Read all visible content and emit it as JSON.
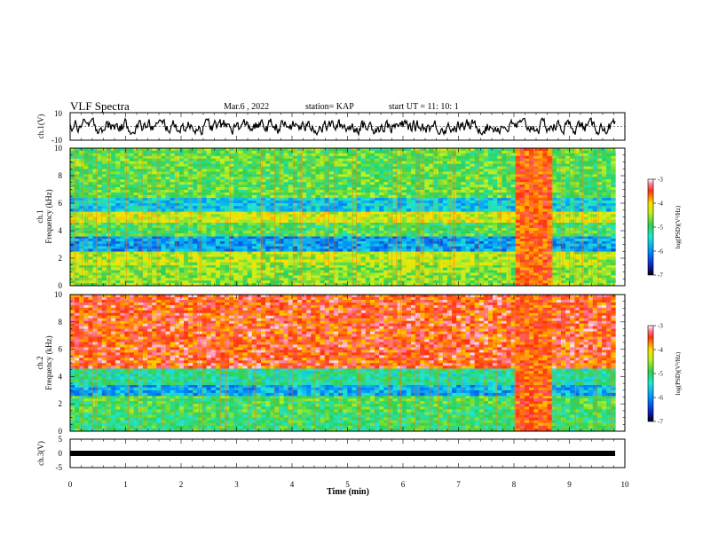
{
  "header": {
    "title": "VLF Spectra",
    "date": "Mar.6 , 2022",
    "station": "station= KAP",
    "start": "start UT =  11: 10: 1"
  },
  "chart_data": [
    {
      "type": "line",
      "panel": "ch1-waveform",
      "ylabel": "ch.1(V)",
      "ylim": [
        -10,
        10
      ],
      "yticks": [
        "10",
        "-10"
      ],
      "x_range_min": [
        0,
        9.83
      ],
      "approx_y_range": [
        -6,
        6
      ]
    },
    {
      "type": "heatmap",
      "panel": "ch1-spectrogram",
      "ylabel": "ch.1\nFrequency (kHz)",
      "ylabel_lines": [
        "ch.1",
        "Frequency (kHz)"
      ],
      "ylim": [
        0,
        10
      ],
      "yticks": [
        "0",
        "2",
        "4",
        "6",
        "8",
        "10"
      ],
      "colorbar": {
        "label": "log(PSD)(V²/Hz)",
        "range": [
          -7,
          -3
        ],
        "ticks": [
          "-3",
          "-4",
          "-5",
          "-6",
          "-7"
        ]
      },
      "bands_khz": [
        {
          "from": 0,
          "to": 1.5,
          "level": -4.6
        },
        {
          "from": 1.5,
          "to": 2.5,
          "level": -4.4
        },
        {
          "from": 2.5,
          "to": 3.6,
          "level": -5.9
        },
        {
          "from": 3.6,
          "to": 4.6,
          "level": -4.9
        },
        {
          "from": 4.6,
          "to": 5.4,
          "level": -4.3
        },
        {
          "from": 5.4,
          "to": 6.4,
          "level": -5.6
        },
        {
          "from": 6.4,
          "to": 10,
          "level": -4.8
        }
      ],
      "burst_minutes": [
        7.95,
        8.65
      ]
    },
    {
      "type": "heatmap",
      "panel": "ch2-spectrogram",
      "ylabel_lines": [
        "ch.2",
        "Frequency (kHz)"
      ],
      "ylim": [
        0,
        10
      ],
      "yticks": [
        "0",
        "2",
        "4",
        "6",
        "8",
        "10"
      ],
      "colorbar": {
        "label": "log(PSD)(V²/Hz)",
        "range": [
          -7,
          -3
        ],
        "ticks": [
          "-3",
          "-4",
          "-5",
          "-6",
          "-7"
        ]
      },
      "bands_khz": [
        {
          "from": 0,
          "to": 1.4,
          "level": -5.0
        },
        {
          "from": 1.4,
          "to": 2.6,
          "level": -4.9
        },
        {
          "from": 2.6,
          "to": 3.4,
          "level": -5.8
        },
        {
          "from": 3.4,
          "to": 4.6,
          "level": -5.2
        },
        {
          "from": 4.6,
          "to": 10,
          "level": -3.5
        }
      ],
      "burst_minutes": [
        7.95,
        8.65
      ]
    },
    {
      "type": "line",
      "panel": "ch3-waveform",
      "ylabel": "ch.3(V)",
      "ylim": [
        -5,
        5
      ],
      "yticks": [
        "5",
        "0",
        "-5"
      ],
      "x_range_min": [
        0,
        9.83
      ],
      "approx_level": 0
    }
  ],
  "xaxis": {
    "label": "Time (min)",
    "range": [
      0,
      10
    ],
    "ticks": [
      "0",
      "1",
      "2",
      "3",
      "4",
      "5",
      "6",
      "7",
      "8",
      "9",
      "10"
    ]
  }
}
